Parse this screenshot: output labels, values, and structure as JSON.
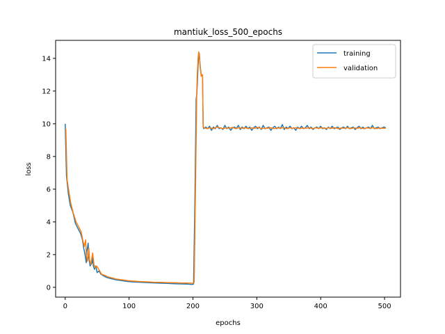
{
  "chart_data": {
    "type": "line",
    "title": "mantiuk_loss_500_epochs",
    "xlabel": "epochs",
    "ylabel": "loss",
    "xlim": [
      -15,
      525
    ],
    "ylim": [
      -0.6,
      15.1
    ],
    "xticks": [
      0,
      100,
      200,
      300,
      400,
      500
    ],
    "yticks": [
      0,
      2,
      4,
      6,
      8,
      10,
      12,
      14
    ],
    "grid": false,
    "legend_position": "top-right",
    "series": [
      {
        "name": "training",
        "color": "#1f77b4",
        "points": [
          [
            0,
            10.0
          ],
          [
            2,
            6.8
          ],
          [
            5,
            5.7
          ],
          [
            8,
            5.0
          ],
          [
            12,
            4.6
          ],
          [
            16,
            3.9
          ],
          [
            20,
            3.6
          ],
          [
            24,
            3.3
          ],
          [
            27,
            2.9
          ],
          [
            29,
            2.4
          ],
          [
            31,
            2.0
          ],
          [
            33,
            1.5
          ],
          [
            34,
            2.2
          ],
          [
            36,
            2.7
          ],
          [
            37,
            1.8
          ],
          [
            39,
            1.3
          ],
          [
            42,
            1.5
          ],
          [
            43,
            2.0
          ],
          [
            44,
            1.3
          ],
          [
            46,
            1.1
          ],
          [
            48,
            1.3
          ],
          [
            50,
            0.9
          ],
          [
            53,
            1.0
          ],
          [
            56,
            0.8
          ],
          [
            60,
            0.7
          ],
          [
            65,
            0.6
          ],
          [
            70,
            0.55
          ],
          [
            80,
            0.45
          ],
          [
            90,
            0.4
          ],
          [
            100,
            0.35
          ],
          [
            110,
            0.32
          ],
          [
            120,
            0.3
          ],
          [
            130,
            0.28
          ],
          [
            140,
            0.27
          ],
          [
            150,
            0.25
          ],
          [
            160,
            0.24
          ],
          [
            170,
            0.22
          ],
          [
            180,
            0.21
          ],
          [
            190,
            0.2
          ],
          [
            199,
            0.18
          ],
          [
            201,
            0.2
          ],
          [
            203,
            5.0
          ],
          [
            205,
            11.5
          ],
          [
            206,
            11.8
          ],
          [
            207,
            12.5
          ],
          [
            208,
            13.5
          ],
          [
            209,
            14.1
          ],
          [
            210,
            14.3
          ],
          [
            211,
            13.7
          ],
          [
            212,
            13.3
          ],
          [
            213,
            13.0
          ],
          [
            214,
            13.0
          ],
          [
            215,
            12.9
          ],
          [
            216,
            9.8
          ],
          [
            217,
            9.7
          ],
          [
            220,
            9.8
          ],
          [
            223,
            9.7
          ],
          [
            226,
            9.85
          ],
          [
            229,
            9.6
          ],
          [
            232,
            9.8
          ],
          [
            235,
            9.7
          ],
          [
            238,
            9.9
          ],
          [
            241,
            9.7
          ],
          [
            244,
            9.75
          ],
          [
            247,
            9.65
          ],
          [
            250,
            9.9
          ],
          [
            253,
            9.7
          ],
          [
            256,
            9.8
          ],
          [
            259,
            9.6
          ],
          [
            262,
            9.75
          ],
          [
            265,
            9.8
          ],
          [
            268,
            9.7
          ],
          [
            271,
            9.9
          ],
          [
            274,
            9.65
          ],
          [
            277,
            9.8
          ],
          [
            280,
            9.7
          ],
          [
            283,
            9.85
          ],
          [
            286,
            9.7
          ],
          [
            289,
            9.8
          ],
          [
            292,
            9.6
          ],
          [
            295,
            9.75
          ],
          [
            298,
            9.85
          ],
          [
            301,
            9.7
          ],
          [
            304,
            9.8
          ],
          [
            307,
            9.65
          ],
          [
            310,
            9.9
          ],
          [
            313,
            9.7
          ],
          [
            316,
            9.75
          ],
          [
            319,
            9.8
          ],
          [
            322,
            9.6
          ],
          [
            325,
            9.75
          ],
          [
            328,
            9.85
          ],
          [
            331,
            9.7
          ],
          [
            334,
            9.8
          ],
          [
            337,
            9.7
          ],
          [
            340,
            9.95
          ],
          [
            343,
            9.65
          ],
          [
            346,
            9.8
          ],
          [
            349,
            9.7
          ],
          [
            352,
            9.85
          ],
          [
            355,
            9.7
          ],
          [
            358,
            9.75
          ],
          [
            361,
            9.6
          ],
          [
            364,
            9.8
          ],
          [
            367,
            9.7
          ],
          [
            370,
            9.85
          ],
          [
            373,
            9.7
          ],
          [
            376,
            9.75
          ],
          [
            379,
            9.9
          ],
          [
            382,
            9.7
          ],
          [
            385,
            9.8
          ],
          [
            388,
            9.65
          ],
          [
            391,
            9.75
          ],
          [
            394,
            9.8
          ],
          [
            397,
            9.7
          ],
          [
            400,
            9.85
          ],
          [
            403,
            9.7
          ],
          [
            406,
            9.75
          ],
          [
            409,
            9.65
          ],
          [
            412,
            9.8
          ],
          [
            415,
            9.7
          ],
          [
            418,
            9.85
          ],
          [
            421,
            9.7
          ],
          [
            424,
            9.75
          ],
          [
            427,
            9.8
          ],
          [
            430,
            9.65
          ],
          [
            433,
            9.75
          ],
          [
            436,
            9.8
          ],
          [
            439,
            9.7
          ],
          [
            442,
            9.85
          ],
          [
            445,
            9.7
          ],
          [
            448,
            9.75
          ],
          [
            451,
            9.8
          ],
          [
            454,
            9.65
          ],
          [
            457,
            9.75
          ],
          [
            460,
            9.85
          ],
          [
            463,
            9.7
          ],
          [
            466,
            9.8
          ],
          [
            469,
            9.7
          ],
          [
            472,
            9.75
          ],
          [
            475,
            9.8
          ],
          [
            478,
            9.7
          ],
          [
            481,
            9.9
          ],
          [
            484,
            9.7
          ],
          [
            487,
            9.75
          ],
          [
            490,
            9.8
          ],
          [
            493,
            9.7
          ],
          [
            496,
            9.75
          ],
          [
            499,
            9.8
          ],
          [
            502,
            9.75
          ]
        ]
      },
      {
        "name": "validation",
        "color": "#ff7f0e",
        "points": [
          [
            1,
            9.7
          ],
          [
            3,
            6.6
          ],
          [
            6,
            5.8
          ],
          [
            9,
            5.1
          ],
          [
            13,
            4.5
          ],
          [
            17,
            4.0
          ],
          [
            21,
            3.7
          ],
          [
            25,
            3.4
          ],
          [
            28,
            2.8
          ],
          [
            30,
            2.5
          ],
          [
            32,
            2.9
          ],
          [
            33,
            2.0
          ],
          [
            35,
            1.6
          ],
          [
            37,
            2.4
          ],
          [
            38,
            1.7
          ],
          [
            40,
            1.4
          ],
          [
            43,
            2.1
          ],
          [
            45,
            1.4
          ],
          [
            47,
            1.2
          ],
          [
            49,
            1.3
          ],
          [
            51,
            1.2
          ],
          [
            54,
            1.0
          ],
          [
            57,
            0.8
          ],
          [
            61,
            0.75
          ],
          [
            66,
            0.65
          ],
          [
            71,
            0.6
          ],
          [
            80,
            0.5
          ],
          [
            90,
            0.45
          ],
          [
            100,
            0.4
          ],
          [
            110,
            0.37
          ],
          [
            120,
            0.35
          ],
          [
            130,
            0.33
          ],
          [
            140,
            0.31
          ],
          [
            150,
            0.3
          ],
          [
            160,
            0.29
          ],
          [
            170,
            0.28
          ],
          [
            180,
            0.27
          ],
          [
            190,
            0.26
          ],
          [
            200,
            0.25
          ],
          [
            202,
            0.3
          ],
          [
            204,
            6.0
          ],
          [
            206,
            12.0
          ],
          [
            207,
            13.2
          ],
          [
            208,
            14.0
          ],
          [
            209,
            14.4
          ],
          [
            210,
            14.2
          ],
          [
            211,
            13.6
          ],
          [
            212,
            13.2
          ],
          [
            213,
            12.9
          ],
          [
            214,
            13.0
          ],
          [
            215,
            13.0
          ],
          [
            216,
            9.8
          ],
          [
            218,
            9.75
          ],
          [
            222,
            9.7
          ],
          [
            227,
            9.75
          ],
          [
            232,
            9.7
          ],
          [
            237,
            9.8
          ],
          [
            242,
            9.75
          ],
          [
            247,
            9.7
          ],
          [
            252,
            9.75
          ],
          [
            257,
            9.72
          ],
          [
            262,
            9.78
          ],
          [
            267,
            9.7
          ],
          [
            272,
            9.75
          ],
          [
            277,
            9.72
          ],
          [
            282,
            9.76
          ],
          [
            287,
            9.7
          ],
          [
            292,
            9.75
          ],
          [
            297,
            9.72
          ],
          [
            302,
            9.78
          ],
          [
            307,
            9.7
          ],
          [
            312,
            9.74
          ],
          [
            317,
            9.72
          ],
          [
            322,
            9.76
          ],
          [
            327,
            9.7
          ],
          [
            332,
            9.75
          ],
          [
            337,
            9.72
          ],
          [
            342,
            9.77
          ],
          [
            347,
            9.7
          ],
          [
            352,
            9.75
          ],
          [
            357,
            9.72
          ],
          [
            362,
            9.76
          ],
          [
            367,
            9.7
          ],
          [
            372,
            9.74
          ],
          [
            377,
            9.72
          ],
          [
            382,
            9.76
          ],
          [
            387,
            9.7
          ],
          [
            392,
            9.75
          ],
          [
            397,
            9.72
          ],
          [
            402,
            9.76
          ],
          [
            407,
            9.7
          ],
          [
            412,
            9.75
          ],
          [
            417,
            9.72
          ],
          [
            422,
            9.76
          ],
          [
            427,
            9.7
          ],
          [
            432,
            9.74
          ],
          [
            437,
            9.72
          ],
          [
            442,
            9.76
          ],
          [
            447,
            9.7
          ],
          [
            452,
            9.75
          ],
          [
            457,
            9.72
          ],
          [
            462,
            9.76
          ],
          [
            467,
            9.7
          ],
          [
            472,
            9.75
          ],
          [
            477,
            9.72
          ],
          [
            482,
            9.76
          ],
          [
            487,
            9.7
          ],
          [
            492,
            9.74
          ],
          [
            497,
            9.72
          ],
          [
            502,
            9.73
          ]
        ]
      }
    ]
  }
}
